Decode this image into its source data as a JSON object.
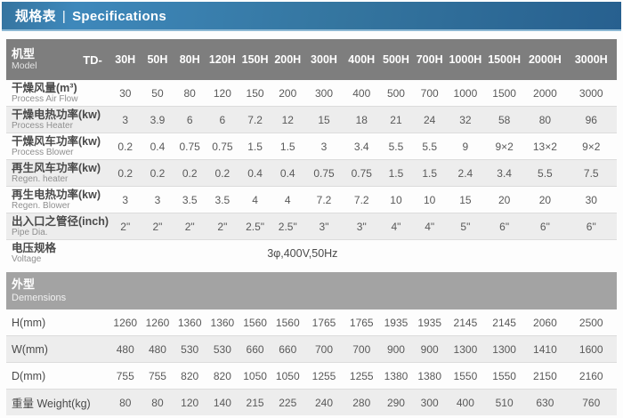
{
  "header": {
    "title_zh": "规格表",
    "separator": "|",
    "title_en": "Specifications"
  },
  "colors": {
    "titlebar_blue_left": "#3e88bb",
    "titlebar_blue_right": "#27608f",
    "table_header_gray": "#7e7e7e",
    "section_bar_gray": "#a3a3a3",
    "row_stripe_gray": "#ededed"
  },
  "table": {
    "model_label_zh": "机型",
    "model_label_en": "Model",
    "model_prefix": "TD-",
    "models": [
      "30H",
      "50H",
      "80H",
      "120H",
      "150H",
      "200H",
      "300H",
      "400H",
      "500H",
      "700H",
      "1000H",
      "1500H",
      "2000H",
      "3000H"
    ],
    "spec_rows": [
      {
        "zh": "干燥风量(m³)",
        "en": "Process Air Flow",
        "values": [
          "30",
          "50",
          "80",
          "120",
          "150",
          "200",
          "300",
          "400",
          "500",
          "700",
          "1000",
          "1500",
          "2000",
          "3000"
        ]
      },
      {
        "zh": "干燥电热功率(kw)",
        "en": "Process Heater",
        "values": [
          "3",
          "3.9",
          "6",
          "6",
          "7.2",
          "12",
          "15",
          "18",
          "21",
          "24",
          "32",
          "58",
          "80",
          "96"
        ]
      },
      {
        "zh": "干燥风车功率(kw)",
        "en": "Process Blower",
        "values": [
          "0.2",
          "0.4",
          "0.75",
          "0.75",
          "1.5",
          "1.5",
          "3",
          "3.4",
          "5.5",
          "5.5",
          "9",
          "9×2",
          "13×2",
          "9×2"
        ]
      },
      {
        "zh": "再生风车功率(kw)",
        "en": "Regen. heater",
        "values": [
          "0.2",
          "0.2",
          "0.2",
          "0.2",
          "0.4",
          "0.4",
          "0.75",
          "0.75",
          "1.5",
          "1.5",
          "2.4",
          "3.4",
          "5.5",
          "7.5"
        ]
      },
      {
        "zh": "再生电热功率(kw)",
        "en": "Regen. Blower",
        "values": [
          "3",
          "3",
          "3.5",
          "3.5",
          "4",
          "4",
          "7.2",
          "7.2",
          "10",
          "10",
          "15",
          "20",
          "20",
          "30"
        ]
      },
      {
        "zh": "出入口之管径(inch)",
        "en": "Pipe Dia.",
        "values": [
          "2\"",
          "2\"",
          "2\"",
          "2\"",
          "2.5\"",
          "2.5\"",
          "3\"",
          "3\"",
          "4\"",
          "4\"",
          "5\"",
          "6\"",
          "6\"",
          "6\""
        ]
      }
    ],
    "voltage_row": {
      "zh": "电压规格",
      "en": "Voltage",
      "value": "3φ,400V,50Hz"
    },
    "section": {
      "zh": "外型",
      "en": "Demensions"
    },
    "dimension_rows": [
      {
        "label": "H(mm)",
        "values": [
          "1260",
          "1260",
          "1360",
          "1360",
          "1560",
          "1560",
          "1765",
          "1765",
          "1935",
          "1935",
          "2145",
          "2145",
          "2060",
          "2500"
        ]
      },
      {
        "label": "W(mm)",
        "values": [
          "480",
          "480",
          "530",
          "530",
          "660",
          "660",
          "700",
          "700",
          "900",
          "900",
          "1300",
          "1300",
          "1410",
          "1600"
        ]
      },
      {
        "label": "D(mm)",
        "values": [
          "755",
          "755",
          "820",
          "820",
          "1050",
          "1050",
          "1255",
          "1255",
          "1380",
          "1380",
          "1550",
          "1550",
          "2150",
          "2160"
        ]
      },
      {
        "label": "重量 Weight(kg)",
        "values": [
          "80",
          "80",
          "120",
          "140",
          "215",
          "225",
          "240",
          "280",
          "290",
          "300",
          "400",
          "510",
          "630",
          "760"
        ]
      }
    ]
  }
}
